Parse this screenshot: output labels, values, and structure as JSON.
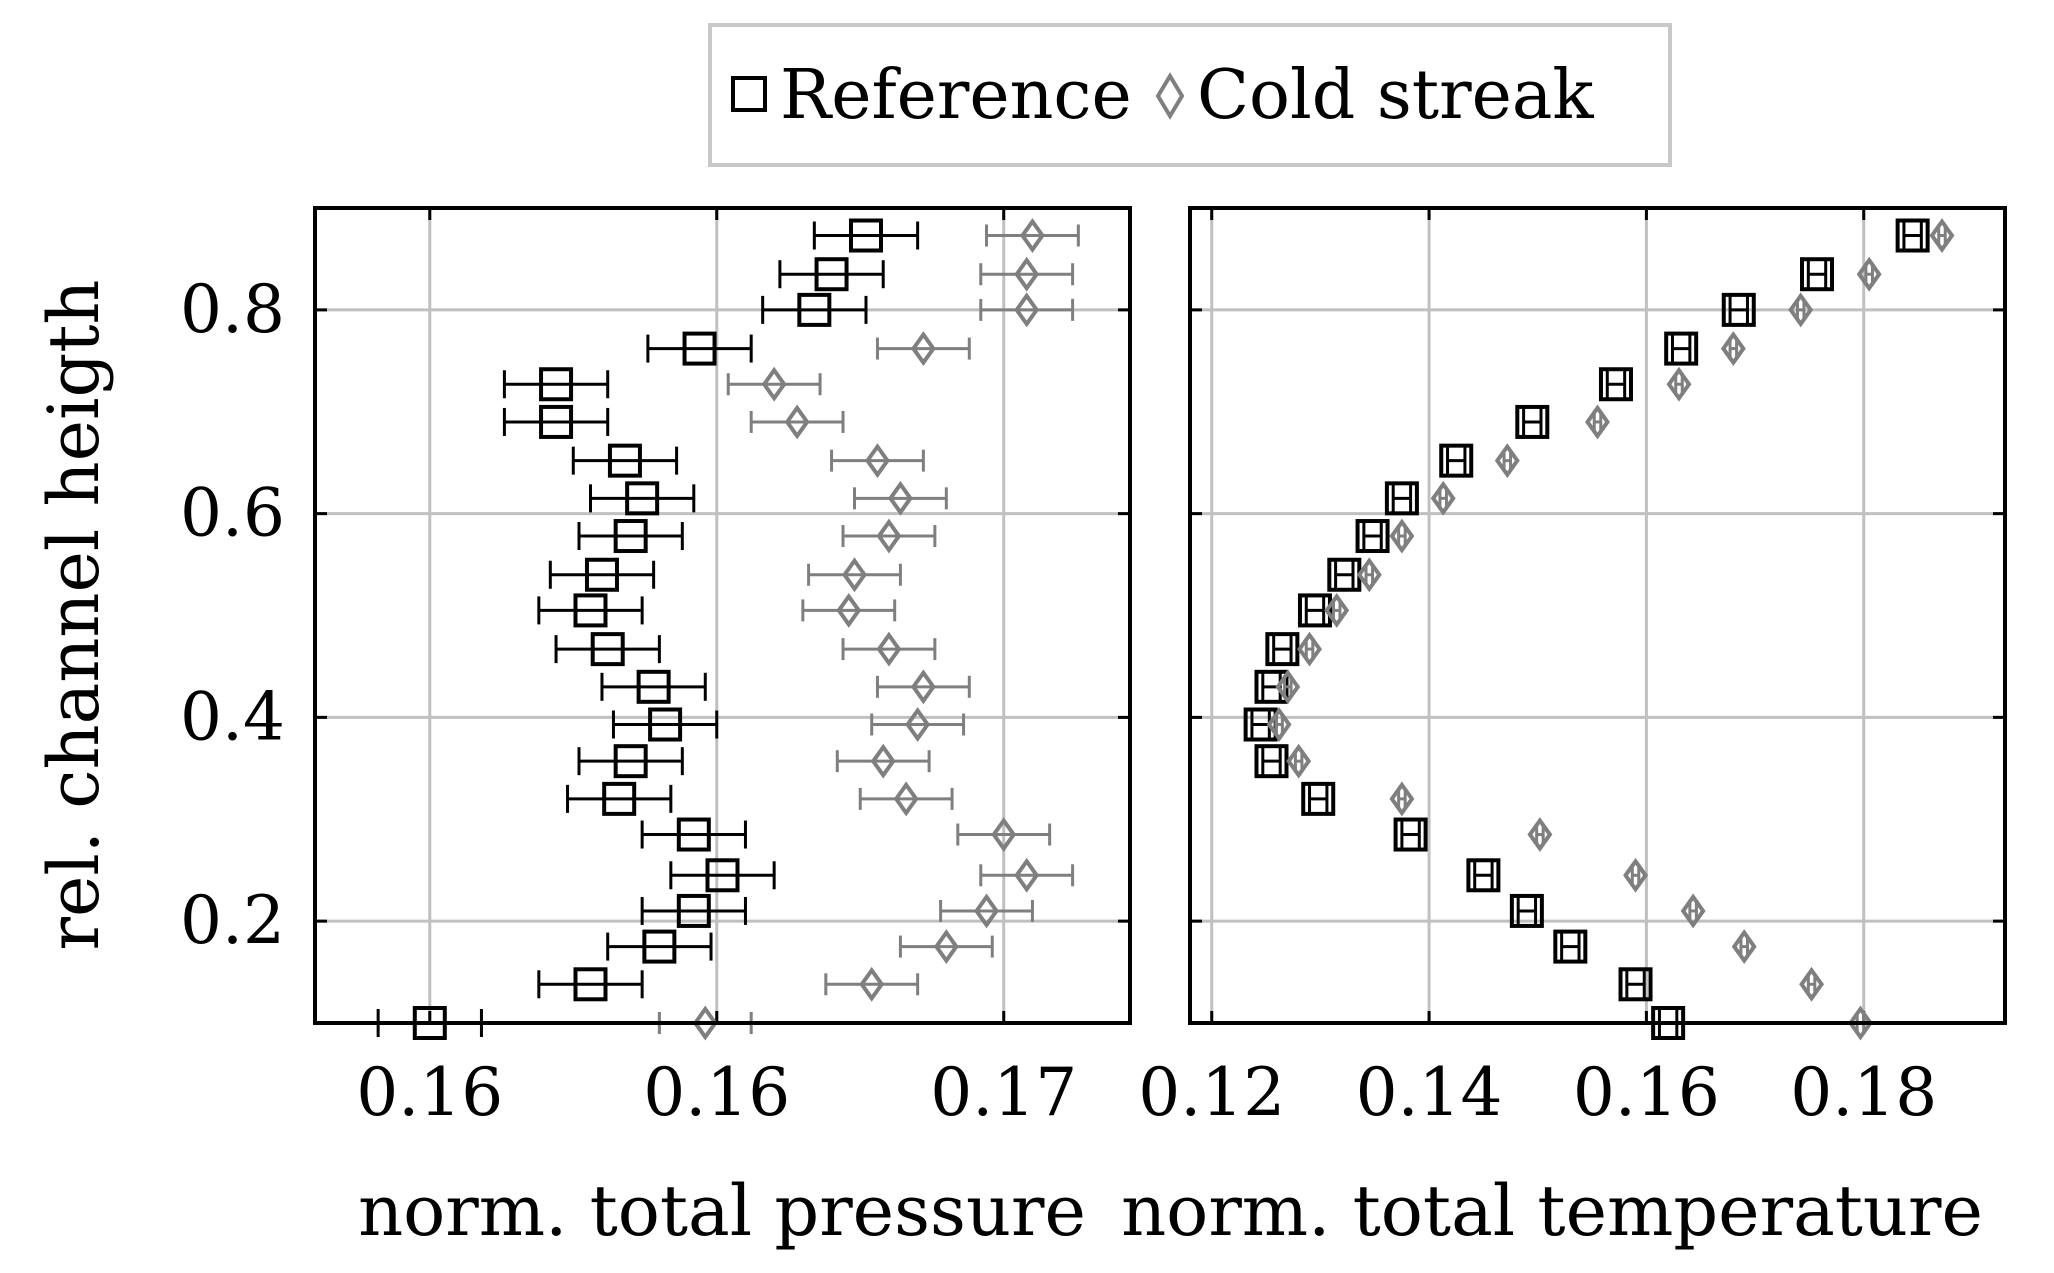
{
  "legend": {
    "position": "top-center",
    "entries": [
      {
        "label": "Reference",
        "marker": "square-icon",
        "color": "#000000"
      },
      {
        "label": "Cold streak",
        "marker": "diamond-icon",
        "color": "#7f7f7f"
      }
    ]
  },
  "chart_data": [
    {
      "type": "scatter",
      "title": "",
      "xlabel": "norm. total pressure",
      "ylabel": "rel. channel heigth",
      "xlim": [
        0.1555,
        0.1697
      ],
      "ylim": [
        0.1,
        0.9
      ],
      "xticks": [
        0.1575,
        0.1625,
        0.1675
      ],
      "xtick_labels": [
        "0.16",
        "0.16",
        "0.17"
      ],
      "yticks": [
        0.2,
        0.4,
        0.6,
        0.8
      ],
      "ytick_labels": [
        "0.2",
        "0.4",
        "0.6",
        "0.8"
      ],
      "grid": true,
      "series": [
        {
          "name": "Reference",
          "marker": "square",
          "color": "#000000",
          "y": [
            0.1,
            0.138,
            0.175,
            0.21,
            0.245,
            0.285,
            0.32,
            0.357,
            0.393,
            0.43,
            0.467,
            0.505,
            0.54,
            0.578,
            0.615,
            0.652,
            0.69,
            0.727,
            0.762,
            0.8,
            0.835,
            0.873
          ],
          "x": [
            0.1575,
            0.1603,
            0.1615,
            0.1621,
            0.1626,
            0.1621,
            0.1608,
            0.161,
            0.1616,
            0.1614,
            0.1606,
            0.1603,
            0.1605,
            0.161,
            0.1612,
            0.1609,
            0.1597,
            0.1597,
            0.1622,
            0.1642,
            0.1645,
            0.1651
          ],
          "x_err": [
            0.0009,
            0.0009,
            0.0009,
            0.0009,
            0.0009,
            0.0009,
            0.0009,
            0.0009,
            0.0009,
            0.0009,
            0.0009,
            0.0009,
            0.0009,
            0.0009,
            0.0009,
            0.0009,
            0.0009,
            0.0009,
            0.0009,
            0.0009,
            0.0009,
            0.0009
          ]
        },
        {
          "name": "Cold streak",
          "marker": "diamond",
          "color": "#7f7f7f",
          "y": [
            0.1,
            0.138,
            0.175,
            0.21,
            0.245,
            0.285,
            0.32,
            0.357,
            0.393,
            0.43,
            0.467,
            0.505,
            0.54,
            0.578,
            0.615,
            0.652,
            0.69,
            0.727,
            0.762,
            0.8,
            0.835,
            0.873
          ],
          "x": [
            0.1623,
            0.1652,
            0.1665,
            0.1672,
            0.1679,
            0.1675,
            0.1658,
            0.1654,
            0.166,
            0.1661,
            0.1655,
            0.1648,
            0.1649,
            0.1655,
            0.1657,
            0.1653,
            0.1639,
            0.1635,
            0.1661,
            0.1679,
            0.1679,
            0.168
          ],
          "x_err": [
            0.0008,
            0.0008,
            0.0008,
            0.0008,
            0.0008,
            0.0008,
            0.0008,
            0.0008,
            0.0008,
            0.0008,
            0.0008,
            0.0008,
            0.0008,
            0.0008,
            0.0008,
            0.0008,
            0.0008,
            0.0008,
            0.0008,
            0.0008,
            0.0008,
            0.0008
          ]
        }
      ]
    },
    {
      "type": "scatter",
      "title": "",
      "xlabel": "norm. total temperature",
      "ylabel": "",
      "xlim": [
        0.118,
        0.193
      ],
      "ylim": [
        0.1,
        0.9
      ],
      "xticks": [
        0.12,
        0.14,
        0.16,
        0.18
      ],
      "xtick_labels": [
        "0.12",
        "0.14",
        "0.16",
        "0.18"
      ],
      "yticks": [
        0.2,
        0.4,
        0.6,
        0.8
      ],
      "grid": true,
      "series": [
        {
          "name": "Reference",
          "marker": "square",
          "color": "#000000",
          "y": [
            0.1,
            0.138,
            0.175,
            0.21,
            0.245,
            0.285,
            0.32,
            0.357,
            0.393,
            0.43,
            0.467,
            0.505,
            0.54,
            0.578,
            0.615,
            0.652,
            0.69,
            0.727,
            0.762,
            0.8,
            0.835,
            0.873
          ],
          "x": [
            0.162,
            0.159,
            0.153,
            0.149,
            0.145,
            0.1383,
            0.1298,
            0.1255,
            0.1245,
            0.1255,
            0.1265,
            0.1295,
            0.1322,
            0.1348,
            0.1375,
            0.1425,
            0.1495,
            0.1572,
            0.1632,
            0.1685,
            0.1757,
            0.1845
          ],
          "x_err": [
            0.0008,
            0.0008,
            0.0008,
            0.0008,
            0.0008,
            0.0008,
            0.0008,
            0.0008,
            0.0008,
            0.0008,
            0.0008,
            0.0008,
            0.0008,
            0.0008,
            0.0008,
            0.0008,
            0.0008,
            0.0008,
            0.0008,
            0.0008,
            0.0008,
            0.0008
          ]
        },
        {
          "name": "Cold streak",
          "marker": "diamond",
          "color": "#7f7f7f",
          "y": [
            0.1,
            0.138,
            0.175,
            0.21,
            0.245,
            0.285,
            0.32,
            0.357,
            0.393,
            0.43,
            0.467,
            0.505,
            0.54,
            0.578,
            0.615,
            0.652,
            0.69,
            0.727,
            0.762,
            0.8,
            0.835,
            0.873
          ],
          "x": [
            0.1797,
            0.1752,
            0.169,
            0.1643,
            0.159,
            0.1502,
            0.1375,
            0.128,
            0.1262,
            0.127,
            0.129,
            0.1315,
            0.1345,
            0.1375,
            0.1413,
            0.1472,
            0.1555,
            0.163,
            0.168,
            0.1742,
            0.1805,
            0.1872
          ],
          "x_err": [
            0.0003,
            0.0003,
            0.0003,
            0.0003,
            0.0003,
            0.0003,
            0.0003,
            0.0003,
            0.0003,
            0.0003,
            0.0003,
            0.0003,
            0.0003,
            0.0003,
            0.0003,
            0.0003,
            0.0003,
            0.0003,
            0.0003,
            0.0003,
            0.0003,
            0.0003
          ]
        }
      ]
    }
  ]
}
